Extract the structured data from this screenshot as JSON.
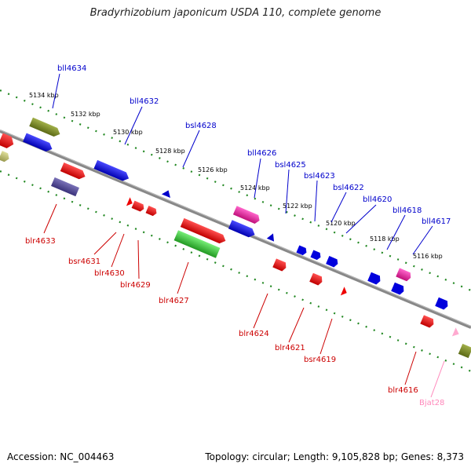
{
  "title": "Bradyrhizobium japonicum USDA 110, complete genome",
  "footer": {
    "accession": "Accession: NC_004463",
    "summary": "Topology: circular; Length: 9,105,828 bp; Genes: 8,373"
  },
  "scale_labels": [
    "5134 kbp",
    "5132 kbp",
    "5130 kbp",
    "5128 kbp",
    "5126 kbp",
    "5124 kbp",
    "5122 kbp",
    "5120 kbp",
    "5118 kbp",
    "5116 kbp"
  ],
  "genes_top": [
    "bll4634",
    "bll4632",
    "bsl4628",
    "bll4626",
    "bsl4625",
    "bsl4623",
    "bsl4622",
    "bll4620",
    "bll4618",
    "bll4617"
  ],
  "genes_bottom": [
    "blr4633",
    "bsr4631",
    "blr4630",
    "blr4629",
    "blr4627",
    "blr4624",
    "blr4621",
    "bsr4619",
    "blr4616",
    "Bjat28"
  ],
  "colors": {
    "top_label": "#0000cc",
    "bottom_label": "#cc0000",
    "rna_label": "#ff88bb",
    "backbone": "#777777",
    "scale_dots": "#228822"
  }
}
